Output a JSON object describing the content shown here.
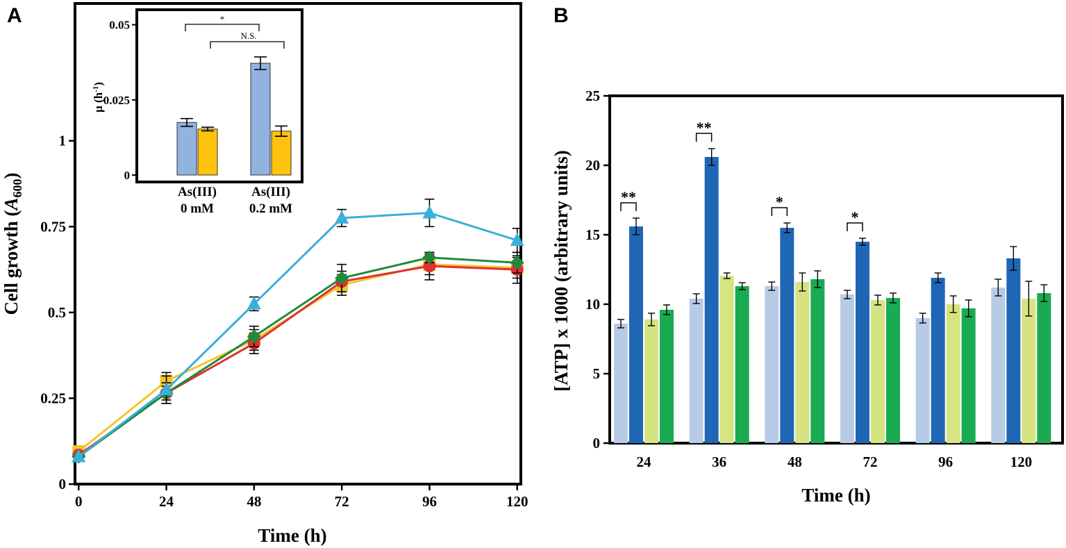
{
  "panels": {
    "a_letter": "A",
    "b_letter": "B"
  },
  "chart_data": [
    {
      "id": "A",
      "type": "line",
      "title": "",
      "xlabel": "Time (h)",
      "ylabel_main": "Cell growth (",
      "ylabel_italic": "A",
      "ylabel_sub": "600",
      "ylabel_close": ")",
      "x": [
        0,
        24,
        48,
        72,
        96,
        120
      ],
      "x_tick_labels": [
        "0",
        "24",
        "48",
        "72",
        "96",
        "120"
      ],
      "xlim": [
        -1,
        121
      ],
      "ylim": [
        0,
        1.4
      ],
      "y_ticks": [
        0,
        0.25,
        0.5,
        0.75,
        1
      ],
      "y_tick_labels": [
        "0",
        "0.25",
        "0.5",
        "0.75",
        "1"
      ],
      "series": [
        {
          "name": "yellow-squares",
          "color": "#f5c42c",
          "marker": "square",
          "values": [
            0.095,
            0.3,
            0.42,
            0.58,
            0.64,
            0.63
          ],
          "errors": [
            0.005,
            0.025,
            0.03,
            0.03,
            0.03,
            0.03
          ]
        },
        {
          "name": "red-circles",
          "color": "#e0312f",
          "marker": "circle",
          "values": [
            0.085,
            0.265,
            0.41,
            0.59,
            0.635,
            0.625
          ],
          "errors": [
            0.005,
            0.02,
            0.03,
            0.03,
            0.04,
            0.04
          ]
        },
        {
          "name": "green-diamonds",
          "color": "#1f8a3c",
          "marker": "diamond",
          "values": [
            0.08,
            0.265,
            0.43,
            0.6,
            0.66,
            0.645
          ],
          "errors": [
            0.005,
            0.03,
            0.03,
            0.04,
            0.015,
            0.03
          ]
        },
        {
          "name": "blue-triangles",
          "color": "#3aaedc",
          "marker": "triangle",
          "values": [
            0.08,
            0.275,
            0.525,
            0.775,
            0.79,
            0.71
          ],
          "errors": [
            0.005,
            0.04,
            0.02,
            0.025,
            0.04,
            0.035
          ]
        }
      ],
      "inset": {
        "type": "bar",
        "ylabel": "μ (h",
        "ylabel_sup": "-1",
        "ylabel_close": ")",
        "ylim": [
          0,
          0.055
        ],
        "y_ticks": [
          0,
          0.025,
          0.05
        ],
        "y_tick_labels": [
          "0",
          "0.025",
          "0.05"
        ],
        "categories": [
          {
            "line1": "As(III)",
            "line2": "0 mM"
          },
          {
            "line1": "As(III)",
            "line2": "0.2 mM"
          }
        ],
        "series": [
          {
            "name": "blue",
            "color": "#92b2e0",
            "values": [
              0.0175,
              0.0372
            ],
            "errors": [
              0.0013,
              0.0021
            ]
          },
          {
            "name": "orange",
            "color": "#ffc20e",
            "values": [
              0.0153,
              0.0146
            ],
            "errors": [
              0.0006,
              0.0017
            ]
          }
        ],
        "annotations": {
          "star": "*",
          "ns": "N.S."
        }
      }
    },
    {
      "id": "B",
      "type": "bar",
      "title": "",
      "xlabel": "Time (h)",
      "ylabel": "[ATP] x 1000  (arbitrary units)",
      "categories": [
        "24",
        "36",
        "48",
        "72",
        "96",
        "120"
      ],
      "ylim": [
        0,
        25
      ],
      "y_ticks": [
        0,
        5,
        10,
        15,
        20,
        25
      ],
      "y_tick_labels": [
        "0",
        "5",
        "10",
        "15",
        "20",
        "25"
      ],
      "series": [
        {
          "name": "light-blue",
          "color": "#b8cbe6",
          "values": [
            8.6,
            10.4,
            11.3,
            10.7,
            9.0,
            11.2
          ],
          "errors": [
            0.3,
            0.35,
            0.3,
            0.3,
            0.35,
            0.6
          ]
        },
        {
          "name": "dark-blue",
          "color": "#1f66b4",
          "values": [
            15.6,
            20.6,
            15.5,
            14.5,
            11.9,
            13.3
          ],
          "errors": [
            0.6,
            0.6,
            0.35,
            0.25,
            0.35,
            0.85
          ]
        },
        {
          "name": "light-green",
          "color": "#d6e381",
          "values": [
            8.9,
            12.05,
            11.6,
            10.3,
            10.0,
            10.4
          ],
          "errors": [
            0.45,
            0.2,
            0.65,
            0.35,
            0.6,
            1.25
          ]
        },
        {
          "name": "dark-green",
          "color": "#1aaa52",
          "values": [
            9.6,
            11.3,
            11.8,
            10.45,
            9.7,
            10.8
          ],
          "errors": [
            0.35,
            0.25,
            0.6,
            0.35,
            0.6,
            0.6
          ]
        }
      ],
      "significance": [
        {
          "category": "24",
          "label": "**"
        },
        {
          "category": "36",
          "label": "**"
        },
        {
          "category": "48",
          "label": "*"
        },
        {
          "category": "72",
          "label": "*"
        }
      ]
    }
  ]
}
